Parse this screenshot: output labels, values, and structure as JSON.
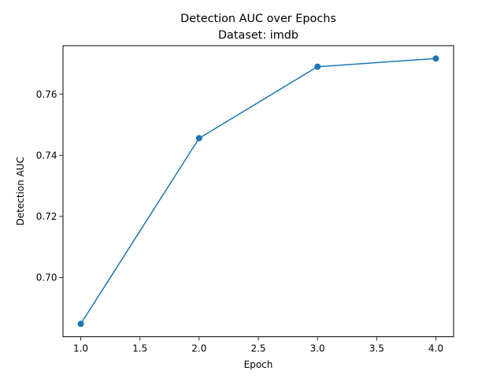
{
  "chart_data": {
    "type": "line",
    "title": "Detection AUC over Epochs",
    "subtitle": "Dataset: imdb",
    "xlabel": "Epoch",
    "ylabel": "Detection AUC",
    "xlim": [
      0.85,
      4.15
    ],
    "ylim": [
      0.6806,
      0.7759
    ],
    "x_ticks": [
      1.0,
      1.5,
      2.0,
      2.5,
      3.0,
      3.5,
      4.0
    ],
    "x_tick_labels": [
      "1.0",
      "1.5",
      "2.0",
      "2.5",
      "3.0",
      "3.5",
      "4.0"
    ],
    "y_ticks": [
      0.7,
      0.72,
      0.74,
      0.76
    ],
    "y_tick_labels": [
      "0.70",
      "0.72",
      "0.74",
      "0.76"
    ],
    "grid": false,
    "legend": false,
    "series": [
      {
        "color": "#1f77b4",
        "marker": "circle",
        "x": [
          1,
          2,
          3,
          4
        ],
        "y": [
          0.6848,
          0.7456,
          0.769,
          0.7717
        ]
      }
    ]
  }
}
